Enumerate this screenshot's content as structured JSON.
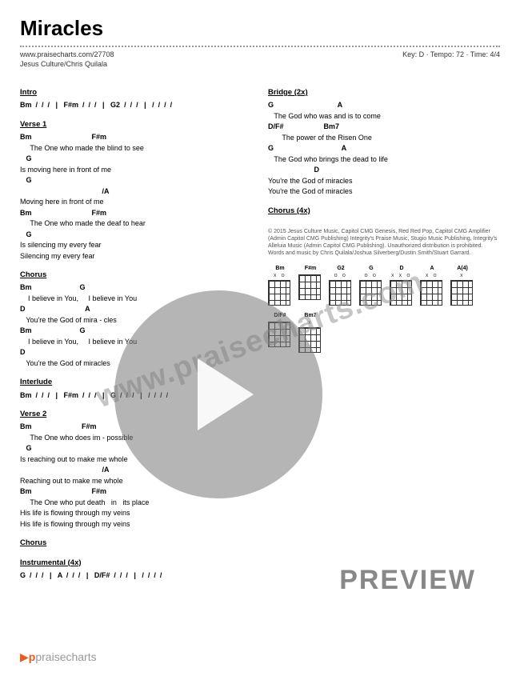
{
  "title": "Miracles",
  "meta": {
    "url": "www.praisecharts.com/27708",
    "key": "D",
    "tempo": "72",
    "time": "4/4",
    "artists": "Jesus Culture/Chris Quilala"
  },
  "left": {
    "intro_head": "Intro",
    "intro_chords": "Bm  /  /  /   |   F#m  /  /  /   |   G2  /  /  /   |   /  /  /  /",
    "v1_head": "Verse 1",
    "v1_c1": "Bm                              F#m",
    "v1_l1": "     The One who made the blind to see",
    "v1_c2": "   G",
    "v1_l2": "Is moving here in front of me",
    "v1_c3": "   G",
    "v1_l3b": "                                         /A",
    "v1_l3": "Moving here in front of me",
    "v1_c4": "Bm                              F#m",
    "v1_l4": "     The One who made the deaf to hear",
    "v1_c5": "   G",
    "v1_l5": "Is silencing my every fear",
    "v1_l6": "Silencing my every fear",
    "ch_head": "Chorus",
    "ch_c1": "Bm                        G",
    "ch_l1": "    I believe in You,     I believe in You",
    "ch_c2": "D                              A",
    "ch_l2": "   You're the God of mira - cles",
    "ch_c3": "Bm                        G",
    "ch_l3": "    I believe in You,     I believe in You",
    "ch_c4": "D",
    "ch_l4": "   You're the God of miracles",
    "int_head": "Interlude",
    "int_chords": "Bm  /  /  /   |   F#m  /  /  /   |   G  /  /  /   |   /  /  /  /",
    "v2_head": "Verse 2",
    "v2_c1": "Bm                         F#m",
    "v2_l1": "     The One who does im - possible",
    "v2_c2": "   G",
    "v2_l2": "Is reaching out to make me whole",
    "v2_l3b": "                                         /A",
    "v2_l3": "Reaching out to make me whole",
    "v2_c4": "Bm                              F#m",
    "v2_l4": "     The One who put death   in   its place",
    "v2_l5": "His life is flowing through my veins",
    "v2_l6": "His life is flowing through my veins",
    "ch2_head": "Chorus",
    "inst_head": "Instrumental (4x)",
    "inst_chords": "G  /  /  /   |   A  /  /  /   |   D/F#  /  /  /   |   /  /  /  /"
  },
  "right": {
    "br_head": "Bridge (2x)",
    "br_c1": "G                                A",
    "br_l1": "   The God who was and is to come",
    "br_c2": "D/F#                    Bm7",
    "br_l2": "       The power of the Risen One",
    "br_c3": "G                                  A",
    "br_l3": "   The God who brings the dead to life",
    "br_c4": "                       D",
    "br_l4": "You're the God of miracles",
    "br_l5": "You're the God of miracles",
    "ch4_head": "Chorus (4x)",
    "copyright": "© 2015 Jesus Culture Music, Capitol CMG Genesis, Red Red Pop, Capitol CMG Amplifier (Admin Capitol CMG Publishing) Integrity's Praise Music, Stugio Music Publishing, Integrity's Alleluia Music (Admin Capitol CMG Publishing). Unauthorized distribution is prohibited. Words and music by Chris Quilala/Joshua Silverberg/Dustin Smith/Stuart Garrard.",
    "chords": [
      {
        "name": "Bm",
        "frets": "X O"
      },
      {
        "name": "F#m",
        "frets": ""
      },
      {
        "name": "G2",
        "frets": "O O"
      },
      {
        "name": "G",
        "frets": "O O"
      },
      {
        "name": "D",
        "frets": "X X O"
      },
      {
        "name": "A",
        "frets": "X O"
      },
      {
        "name": "A(4)",
        "frets": "X"
      },
      {
        "name": "D/F#",
        "frets": ""
      },
      {
        "name": "Bm7",
        "frets": "X"
      }
    ]
  },
  "watermark": "www.praisecharts.com",
  "preview": "PREVIEW",
  "footer": "praisecharts"
}
